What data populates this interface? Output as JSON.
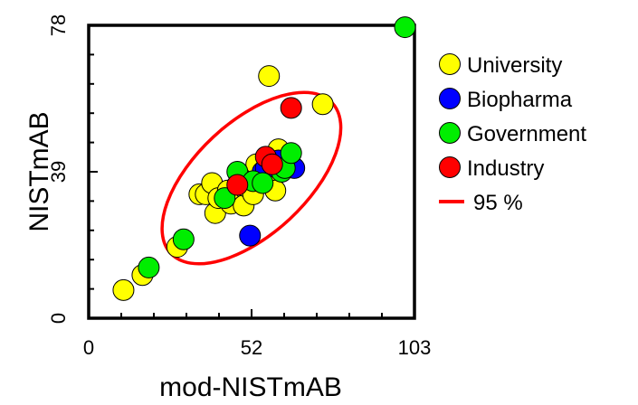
{
  "chart_data": {
    "type": "scatter",
    "xlabel": "mod-NISTmAB",
    "ylabel": "NISTmAB",
    "xlim": [
      0,
      103
    ],
    "ylim": [
      0,
      78
    ],
    "x_ticks": [
      "0",
      "52",
      "103"
    ],
    "y_ticks": [
      "0",
      "39",
      "78"
    ],
    "grid": false,
    "legend_position": "right",
    "colors": {
      "University": "#ffff00",
      "Biopharma": "#0000ff",
      "Government": "#00ee00",
      "Industry": "#ff0000",
      "ellipse": "#ff0000"
    },
    "series": [
      {
        "name": "University",
        "points": [
          [
            11,
            7.5
          ],
          [
            17,
            11.5
          ],
          [
            28,
            19
          ],
          [
            35,
            33
          ],
          [
            37,
            33
          ],
          [
            39,
            36
          ],
          [
            40,
            28
          ],
          [
            41,
            32
          ],
          [
            44,
            34
          ],
          [
            45,
            30.5
          ],
          [
            49,
            30
          ],
          [
            50,
            35
          ],
          [
            52,
            33
          ],
          [
            53,
            41
          ],
          [
            54,
            37
          ],
          [
            58,
            38
          ],
          [
            59,
            34
          ],
          [
            60,
            45
          ],
          [
            57,
            64.5
          ],
          [
            74,
            57
          ]
        ]
      },
      {
        "name": "Biopharma",
        "points": [
          [
            51,
            22
          ],
          [
            55,
            39
          ],
          [
            56,
            40
          ],
          [
            60,
            42
          ],
          [
            65,
            40
          ]
        ]
      },
      {
        "name": "Government",
        "points": [
          [
            19,
            13.5
          ],
          [
            30,
            21
          ],
          [
            43,
            32
          ],
          [
            47,
            39
          ],
          [
            52,
            36.5
          ],
          [
            55,
            36
          ],
          [
            61,
            39
          ],
          [
            62,
            40
          ],
          [
            64,
            44
          ],
          [
            100,
            77.5
          ]
        ]
      },
      {
        "name": "Industry",
        "points": [
          [
            47,
            35.5
          ],
          [
            56,
            43
          ],
          [
            58,
            41
          ],
          [
            64,
            56
          ]
        ]
      }
    ],
    "ellipse_label": "95 %",
    "legend": [
      "University",
      "Biopharma",
      "Government",
      "Industry",
      "95 %"
    ]
  }
}
